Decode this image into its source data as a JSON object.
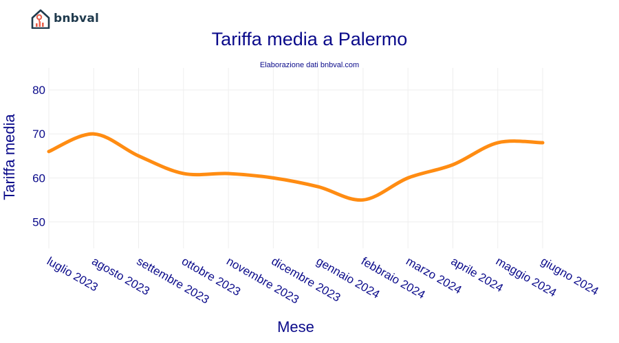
{
  "brand": {
    "name": "bnbval"
  },
  "colors": {
    "line": "#ff8c12",
    "text": "#0a0a8a",
    "grid": "#eeeeee",
    "logo": "#1f3a4d",
    "logo_accent": "#e8604c"
  },
  "chart_data": {
    "type": "line",
    "title": "Tariffa media a Palermo",
    "subtitle": "Elaborazione dati bnbval.com",
    "xlabel": "Mese",
    "ylabel": "Tariffa media",
    "categories": [
      "luglio 2023",
      "agosto 2023",
      "settembre 2023",
      "ottobre 2023",
      "novembre 2023",
      "dicembre 2023",
      "gennaio 2024",
      "febbraio 2024",
      "marzo 2024",
      "aprile 2024",
      "maggio 2024",
      "giugno 2024"
    ],
    "series": [
      {
        "values": [
          66,
          70,
          65,
          61,
          61,
          60,
          58,
          55,
          60,
          63,
          68,
          68
        ]
      }
    ],
    "ylim": [
      44,
      85
    ],
    "yticks": [
      50,
      60,
      70,
      80
    ],
    "grid": true
  }
}
